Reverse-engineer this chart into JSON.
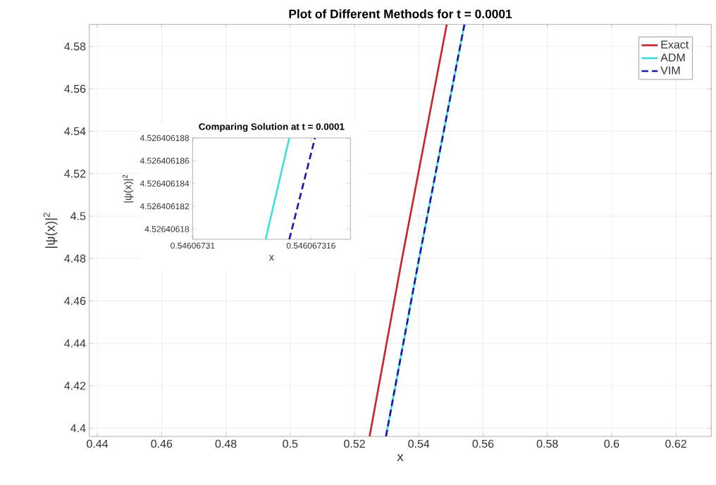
{
  "chart_data": [
    {
      "type": "line",
      "title": "Plot of Different Methods for t = 0.0001",
      "xlabel": "x",
      "ylabel": "|ψ(x)|$^{2}$",
      "xlim": [
        0.4375,
        0.631
      ],
      "ylim": [
        4.3961,
        4.5904
      ],
      "xticks": [
        0.44,
        0.46,
        0.48,
        0.5,
        0.52,
        0.54,
        0.56,
        0.58,
        0.6,
        0.62
      ],
      "yticks": [
        4.4,
        4.42,
        4.44,
        4.46,
        4.48,
        4.5,
        4.52,
        4.54,
        4.56,
        4.58
      ],
      "grid": true,
      "legend": "top right",
      "series": [
        {
          "name": "Exact",
          "color": "#c8262a",
          "line_style": "solid",
          "x": [
            0.5247,
            0.5348,
            0.5487
          ],
          "values": [
            4.3961,
            4.48,
            4.5904
          ]
        },
        {
          "name": "ADM",
          "color": "#40e0e0",
          "line_style": "solid",
          "x": [
            0.5298,
            0.5401,
            0.5542
          ],
          "values": [
            4.3961,
            4.48,
            4.5904
          ]
        },
        {
          "name": "VIM",
          "color": "#1a1aa8",
          "line_style": "dashed",
          "x": [
            0.5298,
            0.5401,
            0.5542
          ],
          "values": [
            4.3961,
            4.48,
            4.5904
          ]
        }
      ]
    },
    {
      "type": "line",
      "title": "Comparing Solution at t = 0.0001",
      "xlabel": "x",
      "ylabel": "|ψ(x)|$^{2}$",
      "xlim": [
        0.54606731,
        0.546067318
      ],
      "ylim": [
        4.5264061791,
        4.526406188
      ],
      "xticks": [
        0.54606731,
        0.546067316
      ],
      "yticks": [
        4.52640618,
        4.526406182,
        4.526406184,
        4.526406186,
        4.526406188
      ],
      "series": [
        {
          "color": "#40e0e0",
          "line_style": "solid",
          "x": [
            0.5460673137,
            0.5460673149
          ],
          "values": [
            4.5264061791,
            4.526406188
          ]
        },
        {
          "color": "#1a1aa8",
          "line_style": "dashed",
          "x": [
            0.5460673149,
            0.5460673162
          ],
          "values": [
            4.5264061791,
            4.526406188
          ]
        }
      ]
    }
  ]
}
